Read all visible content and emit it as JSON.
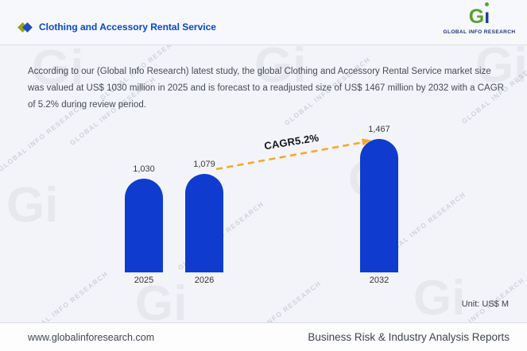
{
  "header": {
    "title": "Clothing and Accessory Rental Service",
    "logo": {
      "mark_g": "G",
      "mark_i": "ı",
      "name": "GLOBAL iNFO RESEARCH"
    }
  },
  "description": "According to our (Global Info Research) latest study, the global Clothing and Accessory Rental Service market size was valued at US$ 1030 million in 2025 and is forecast to a readjusted size of US$ 1467 million by 2032 with a CAGR of 5.2% during review period.",
  "chart_data": {
    "type": "bar",
    "categories": [
      "2025",
      "2026",
      "2032"
    ],
    "values": [
      1030,
      1079,
      1467
    ],
    "value_labels": [
      "1,030",
      "1,079",
      "1,467"
    ],
    "series_unit": "US$ million",
    "annotation": "CAGR5.2%",
    "annotation_style": "dashed orange arrow from 2026 bar top to 2032 bar top",
    "unit_label": "Unit: US$ M",
    "title": "",
    "xlabel": "",
    "ylabel": "",
    "ylim": [
      0,
      1600
    ],
    "grid": false,
    "legend": "none",
    "bar_color": "#0f3cce",
    "arrow_color": "#f9a825"
  },
  "watermark": {
    "text": "GLOBAL INFO RESEARCH",
    "glyph": "Gi"
  },
  "footer": {
    "website": "www.globalinforesearch.com",
    "tagline": "Business Risk & Industry Analysis Reports"
  },
  "colors": {
    "title_blue": "#0847cd",
    "bar_blue": "#0f3cce",
    "arrow_orange": "#f9a825",
    "logo_green": "#57a32e",
    "logo_navy": "#1b3e94",
    "background": "#f3f4f9"
  }
}
